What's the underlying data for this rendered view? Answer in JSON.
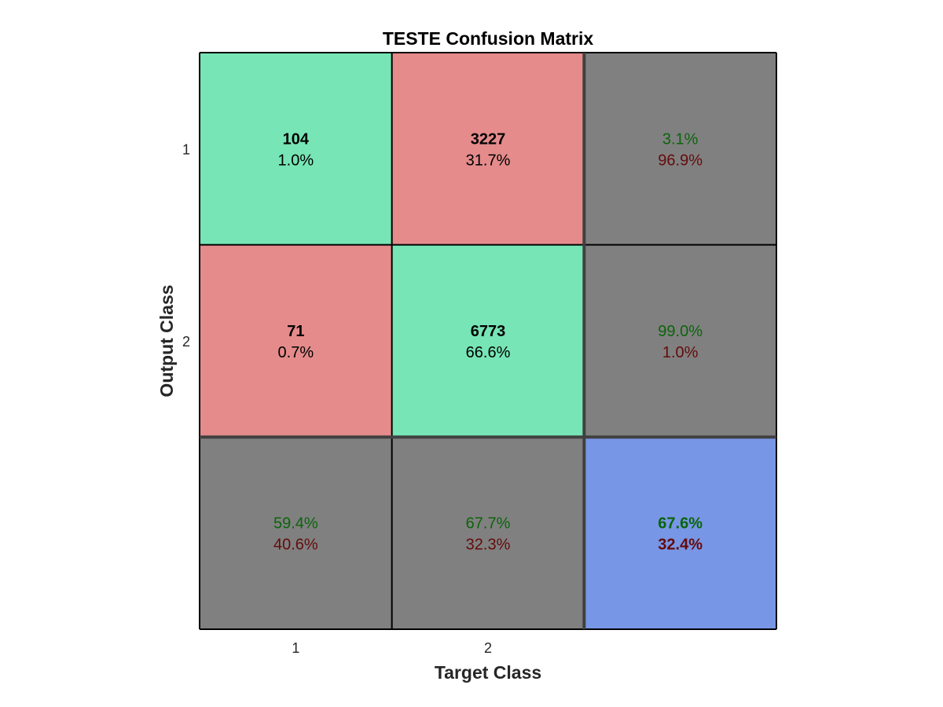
{
  "chart_data": {
    "type": "heatmap",
    "title": "TESTE Confusion Matrix",
    "xlabel": "Target Class",
    "ylabel": "Output Class",
    "x_tick_labels": [
      "1",
      "2"
    ],
    "y_tick_labels": [
      "1",
      "2"
    ],
    "grid": true,
    "colors": {
      "correct": "#77e5b5",
      "incorrect": "#e58b8b",
      "summary": "#808080",
      "overall": "#7896e6",
      "green_text": "#0b640b",
      "red_text": "#640b0b",
      "black_text": "#000000",
      "border": "#000000",
      "thick_border": "#404040"
    },
    "matrix": {
      "counts": [
        [
          104,
          3227
        ],
        [
          71,
          6773
        ]
      ],
      "count_labels": [
        [
          "104",
          "3227"
        ],
        [
          "71",
          "6773"
        ]
      ],
      "percent_labels": [
        [
          "1.0%",
          "31.7%"
        ],
        [
          "0.7%",
          "66.6%"
        ]
      ]
    },
    "row_summary": [
      {
        "correct": "3.1%",
        "incorrect": "96.9%"
      },
      {
        "correct": "99.0%",
        "incorrect": "1.0%"
      }
    ],
    "column_summary": [
      {
        "correct": "59.4%",
        "incorrect": "40.6%"
      },
      {
        "correct": "67.7%",
        "incorrect": "32.3%"
      }
    ],
    "overall": {
      "correct": "67.6%",
      "incorrect": "32.4%"
    }
  }
}
